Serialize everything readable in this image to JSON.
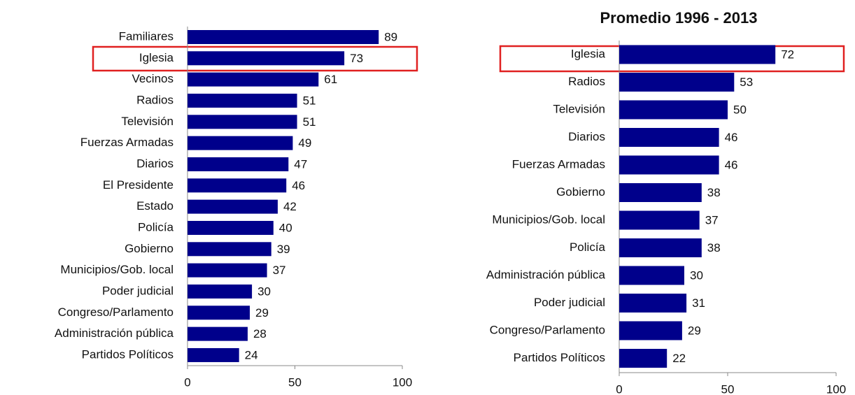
{
  "chart_data": [
    {
      "type": "bar",
      "categories": [
        "Familiares",
        "Iglesia",
        "Vecinos",
        "Radios",
        "Televisión",
        "Fuerzas Armadas",
        "Diarios",
        "El Presidente",
        "Estado",
        "Policía",
        "Gobierno",
        "Municipios/Gob. local",
        "Poder judicial",
        "Congreso/Parlamento",
        "Administración pública",
        "Partidos Políticos"
      ],
      "values": [
        89,
        73,
        61,
        51,
        51,
        49,
        47,
        46,
        42,
        40,
        39,
        37,
        30,
        29,
        28,
        24
      ],
      "color": "#00008b",
      "xlim": [
        0,
        100
      ],
      "xticks": [
        0,
        50,
        100
      ]
    },
    {
      "type": "bar",
      "title": "Promedio 1996 - 2013",
      "categories": [
        "Iglesia",
        "Radios",
        "Televisión",
        "Diarios",
        "Fuerzas Armadas",
        "Gobierno",
        "Municipios/Gob. local",
        "Policía",
        "Administración pública",
        "Poder judicial",
        "Congreso/Parlamento",
        "Partidos Políticos"
      ],
      "values": [
        72,
        53,
        50,
        46,
        46,
        38,
        37,
        38,
        30,
        31,
        29,
        22
      ],
      "color": "#00008b",
      "xlim": [
        0,
        100
      ],
      "xticks": [
        0,
        50,
        100
      ]
    }
  ]
}
